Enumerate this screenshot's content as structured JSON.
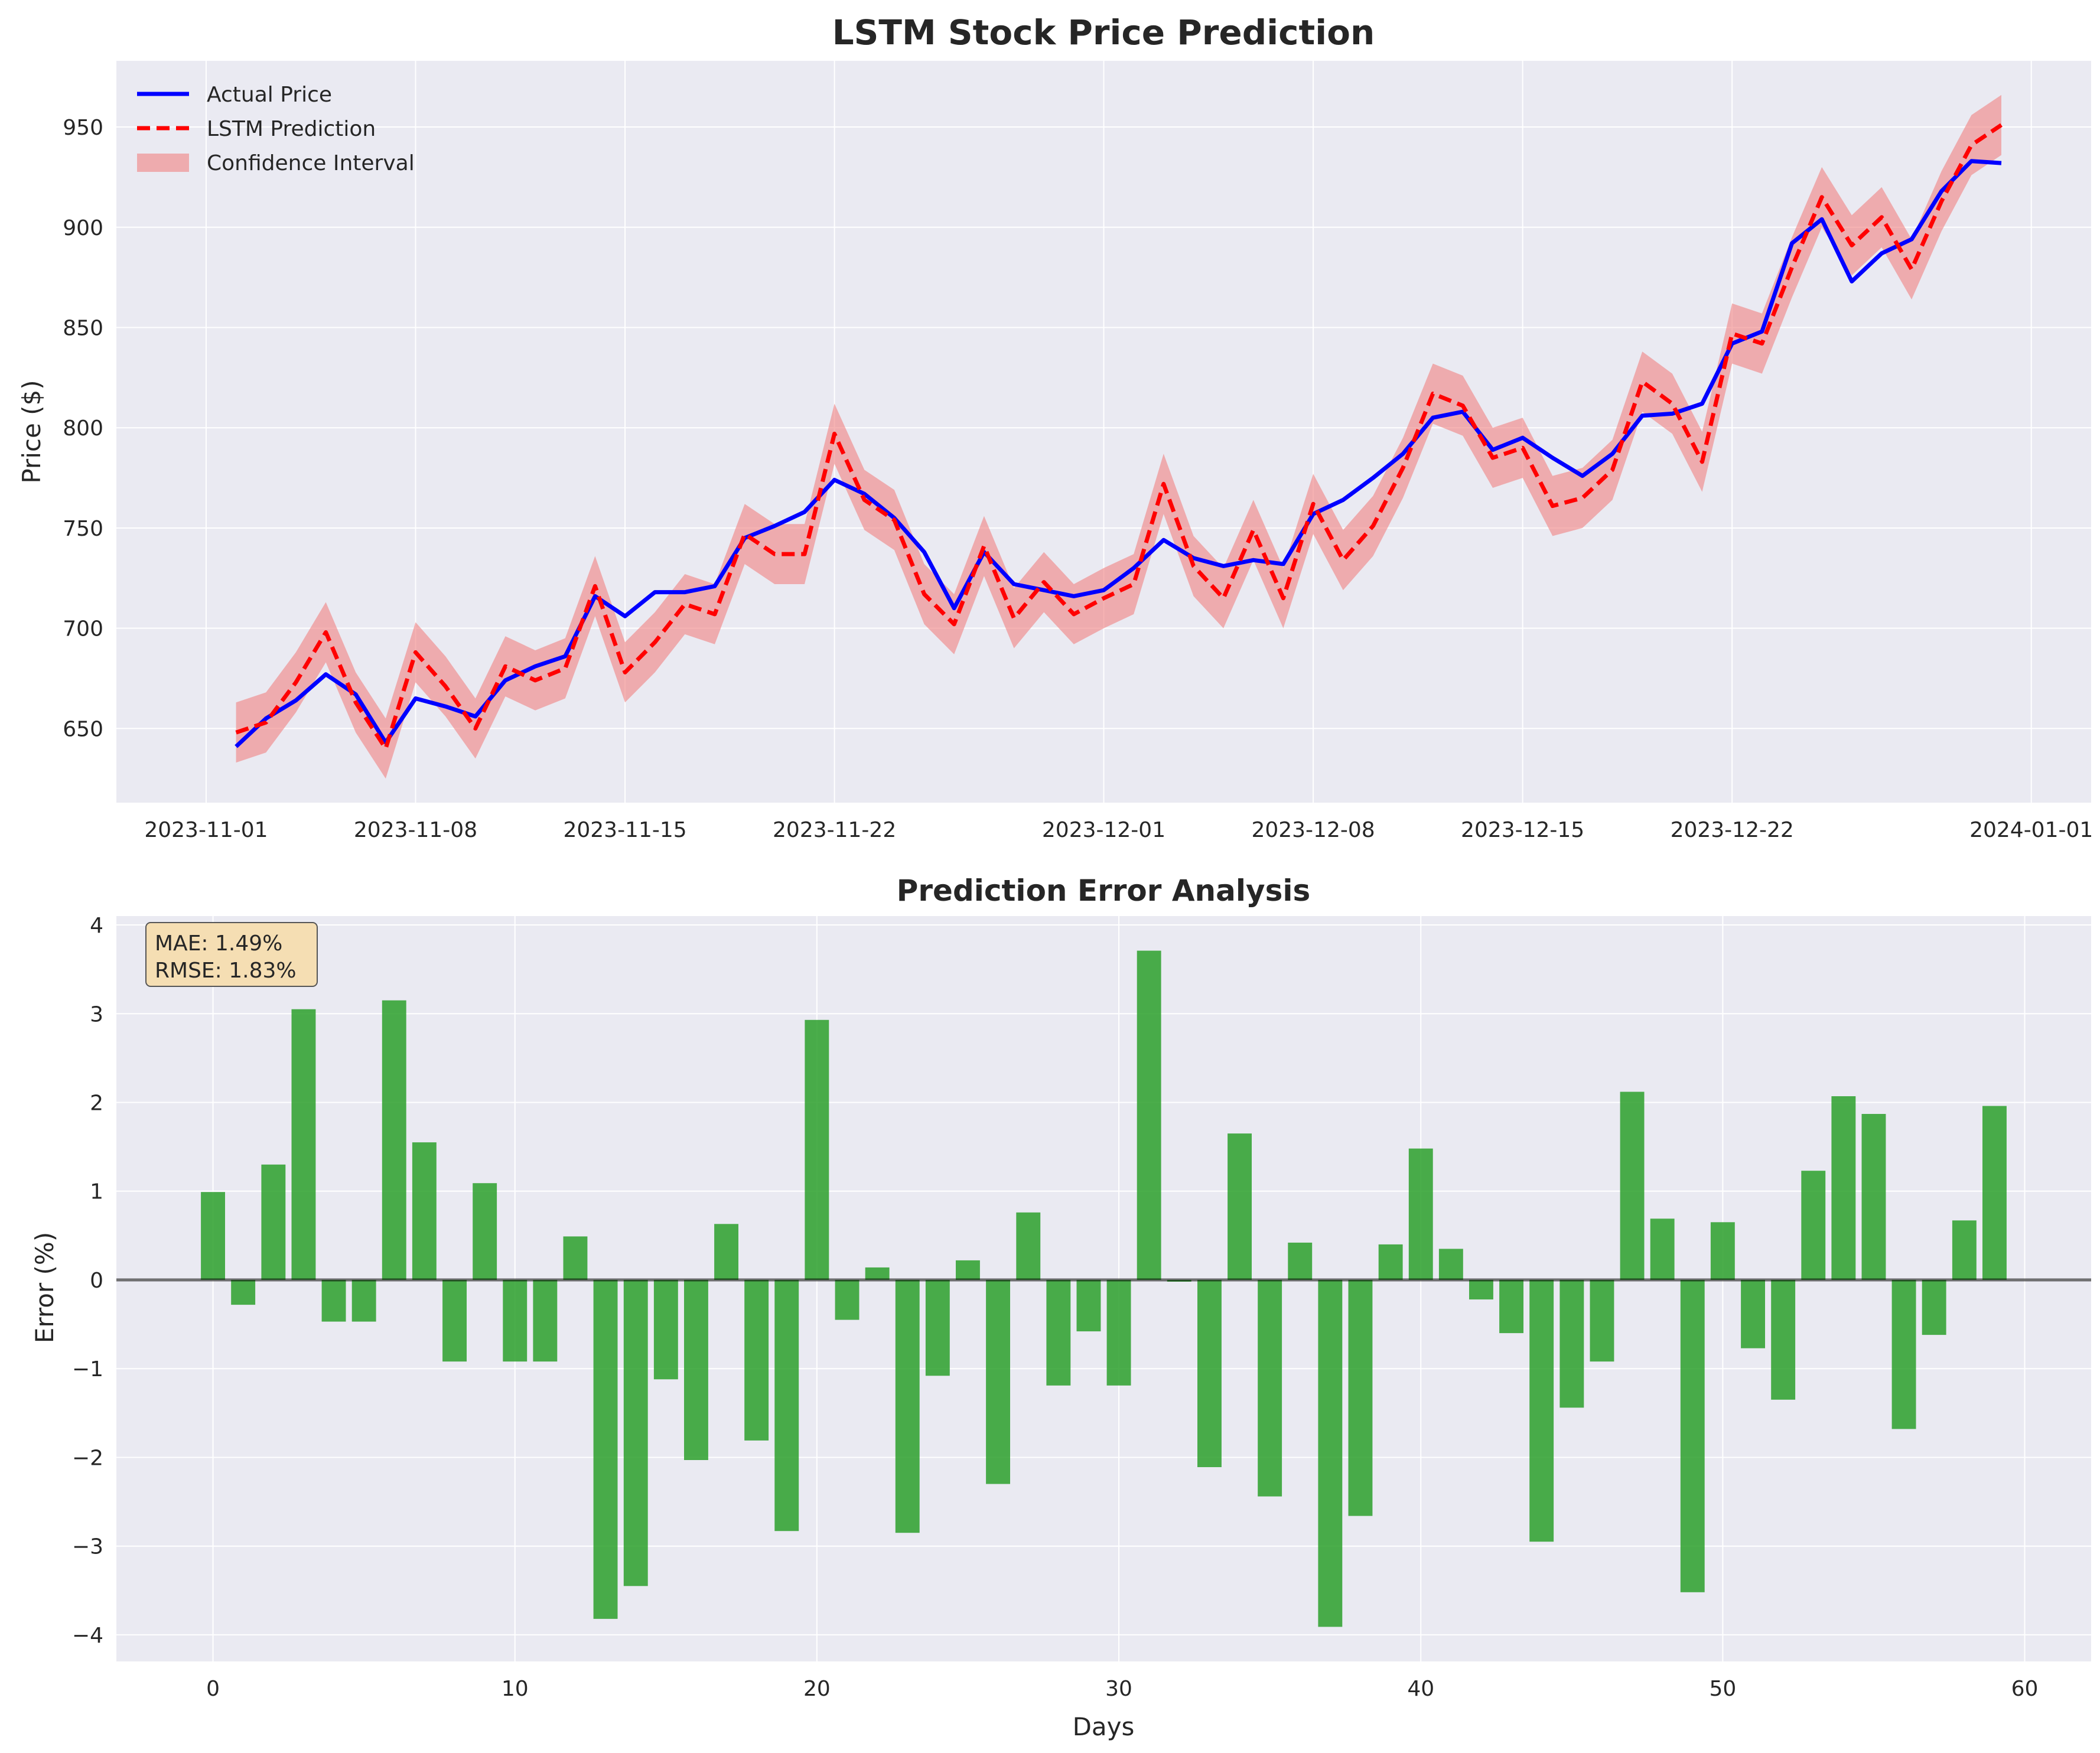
{
  "chart_data": [
    {
      "type": "line",
      "title": "LSTM Stock Price Prediction",
      "xlabel": "",
      "ylabel": "Price ($)",
      "x_axis_type": "date",
      "xlim": [
        "2023-10-29",
        "2024-01-03"
      ],
      "ylim": [
        613,
        983
      ],
      "xticks": [
        "2023-11-01",
        "2023-11-08",
        "2023-11-15",
        "2023-11-22",
        "2023-12-01",
        "2023-12-08",
        "2023-12-15",
        "2023-12-22",
        "2024-01-01"
      ],
      "yticks": [
        650,
        700,
        750,
        800,
        850,
        900,
        950
      ],
      "grid": true,
      "legend_position": "top-left",
      "x": [
        "2023-11-02",
        "2023-11-03",
        "2023-11-04",
        "2023-11-05",
        "2023-11-06",
        "2023-11-07",
        "2023-11-08",
        "2023-11-09",
        "2023-11-10",
        "2023-11-11",
        "2023-11-12",
        "2023-11-13",
        "2023-11-14",
        "2023-11-15",
        "2023-11-16",
        "2023-11-17",
        "2023-11-18",
        "2023-11-19",
        "2023-11-20",
        "2023-11-21",
        "2023-11-22",
        "2023-11-23",
        "2023-11-24",
        "2023-11-25",
        "2023-11-26",
        "2023-11-27",
        "2023-11-28",
        "2023-11-29",
        "2023-11-30",
        "2023-12-01",
        "2023-12-02",
        "2023-12-03",
        "2023-12-04",
        "2023-12-05",
        "2023-12-06",
        "2023-12-07",
        "2023-12-08",
        "2023-12-09",
        "2023-12-10",
        "2023-12-11",
        "2023-12-12",
        "2023-12-13",
        "2023-12-14",
        "2023-12-15",
        "2023-12-16",
        "2023-12-17",
        "2023-12-18",
        "2023-12-19",
        "2023-12-20",
        "2023-12-21",
        "2023-12-22",
        "2023-12-23",
        "2023-12-24",
        "2023-12-25",
        "2023-12-26",
        "2023-12-27",
        "2023-12-28",
        "2023-12-29",
        "2023-12-30",
        "2023-12-31"
      ],
      "series": [
        {
          "name": "Actual Price",
          "color": "#0000ff",
          "style": "solid",
          "values": [
            641,
            655,
            664,
            677,
            667,
            643,
            665,
            661,
            656,
            674,
            681,
            686,
            716,
            706,
            718,
            718,
            721,
            745,
            751,
            758,
            774,
            767,
            755,
            738,
            710,
            738,
            722,
            719,
            716,
            719,
            730,
            744,
            735,
            731,
            734,
            732,
            757,
            764,
            775,
            787,
            805,
            808,
            789,
            795,
            785,
            776,
            787,
            806,
            807,
            812,
            842,
            848,
            892,
            904,
            873,
            887,
            894,
            918,
            933,
            932
          ]
        },
        {
          "name": "LSTM Prediction",
          "color": "#ff0000",
          "style": "dashed",
          "values": [
            648,
            653,
            673,
            698,
            663,
            640,
            688,
            671,
            650,
            681,
            674,
            680,
            721,
            678,
            693,
            712,
            707,
            747,
            737,
            737,
            797,
            764,
            754,
            717,
            702,
            741,
            705,
            723,
            707,
            715,
            722,
            772,
            731,
            715,
            749,
            715,
            762,
            734,
            751,
            780,
            817,
            811,
            785,
            790,
            761,
            765,
            779,
            823,
            812,
            783,
            847,
            842,
            880,
            915,
            891,
            905,
            879,
            913,
            941,
            951
          ]
        },
        {
          "name": "Confidence Interval",
          "color": "#e8747c",
          "style": "band",
          "lower": [
            633,
            638,
            658,
            683,
            648,
            625,
            673,
            656,
            635,
            666,
            659,
            665,
            706,
            663,
            678,
            697,
            692,
            732,
            722,
            722,
            782,
            749,
            739,
            702,
            687,
            726,
            690,
            708,
            692,
            700,
            707,
            757,
            716,
            700,
            734,
            700,
            747,
            719,
            736,
            765,
            802,
            796,
            770,
            775,
            746,
            750,
            764,
            808,
            797,
            768,
            832,
            827,
            865,
            900,
            876,
            890,
            864,
            898,
            926,
            936
          ],
          "upper": [
            663,
            668,
            688,
            713,
            678,
            655,
            703,
            686,
            665,
            696,
            689,
            695,
            736,
            693,
            708,
            727,
            722,
            762,
            752,
            752,
            812,
            779,
            769,
            732,
            717,
            756,
            720,
            738,
            722,
            730,
            737,
            787,
            746,
            730,
            764,
            730,
            777,
            749,
            766,
            795,
            832,
            826,
            800,
            805,
            776,
            780,
            794,
            838,
            827,
            798,
            862,
            857,
            895,
            930,
            906,
            920,
            894,
            928,
            956,
            966
          ]
        }
      ]
    },
    {
      "type": "bar",
      "title": "Prediction Error Analysis",
      "xlabel": "Days",
      "ylabel": "Error (%)",
      "xlim": [
        -3.2,
        62.2
      ],
      "ylim": [
        -4.3,
        4.1
      ],
      "xticks": [
        0,
        10,
        20,
        30,
        40,
        50,
        60
      ],
      "yticks": [
        -4,
        -3,
        -2,
        -1,
        0,
        1,
        2,
        3,
        4
      ],
      "grid": true,
      "color": "#2ca02c",
      "x": [
        0,
        1,
        2,
        3,
        4,
        5,
        6,
        7,
        8,
        9,
        10,
        11,
        12,
        13,
        14,
        15,
        16,
        17,
        18,
        19,
        20,
        21,
        22,
        23,
        24,
        25,
        26,
        27,
        28,
        29,
        30,
        31,
        32,
        33,
        34,
        35,
        36,
        37,
        38,
        39,
        40,
        41,
        42,
        43,
        44,
        45,
        46,
        47,
        48,
        49,
        50,
        51,
        52,
        53,
        54,
        55,
        56,
        57,
        58,
        59
      ],
      "values": [
        0.99,
        -0.28,
        1.3,
        3.05,
        -0.47,
        -0.47,
        3.15,
        1.55,
        -0.92,
        1.09,
        -0.92,
        -0.92,
        0.49,
        -3.82,
        -3.45,
        -1.12,
        -2.03,
        0.63,
        -1.81,
        -2.83,
        2.93,
        -0.45,
        0.14,
        -2.85,
        -1.08,
        0.22,
        -2.3,
        0.76,
        -1.19,
        -0.58,
        -1.19,
        3.71,
        -0.02,
        -2.11,
        1.65,
        -2.44,
        0.42,
        -3.91,
        -2.66,
        0.4,
        1.48,
        0.35,
        -0.22,
        -0.6,
        -2.95,
        -1.44,
        -0.92,
        2.12,
        0.69,
        -3.52,
        0.65,
        -0.77,
        -1.35,
        1.23,
        2.07,
        1.87,
        -1.68,
        -0.62,
        0.67,
        1.96
      ],
      "stats": {
        "mae": "MAE: 1.49%",
        "rmse": "RMSE: 1.83%"
      }
    }
  ]
}
